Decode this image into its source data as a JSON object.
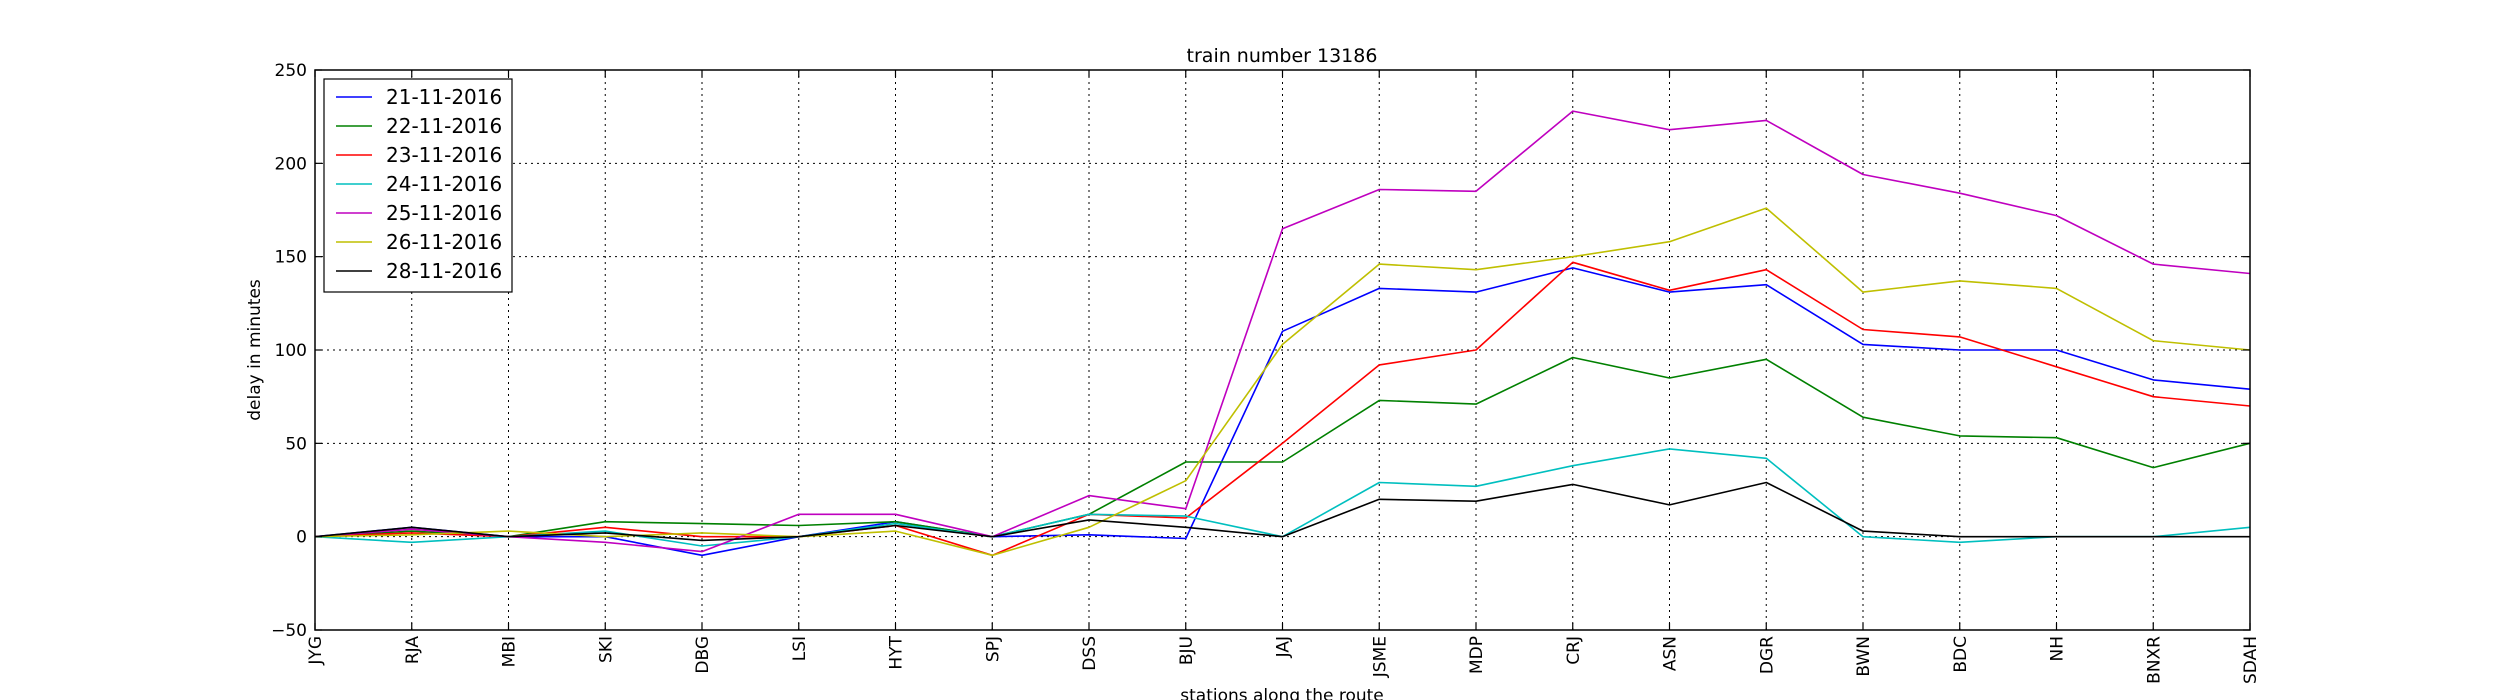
{
  "chart_data": {
    "type": "line",
    "title": "train number 13186",
    "xlabel": "stations along the route",
    "ylabel": "delay in minutes",
    "ylim": [
      -50,
      250
    ],
    "yticks": [
      "250",
      "200",
      "150",
      "100",
      "50",
      "0",
      "−50"
    ],
    "grid": true,
    "legend_position": "top-left",
    "categories": [
      "JYG",
      "RJA",
      "MBI",
      "SKI",
      "DBG",
      "LSI",
      "HYT",
      "SPJ",
      "DSS",
      "BJU",
      "JAJ",
      "JSME",
      "MDP",
      "CRJ",
      "ASN",
      "DGR",
      "BWN",
      "BDC",
      "NH",
      "BNXR",
      "SDAH"
    ],
    "series": [
      {
        "name": "21-11-2016",
        "color": "#0000ff",
        "values": [
          0,
          5,
          0,
          0,
          -10,
          0,
          8,
          0,
          1,
          -1,
          110,
          133,
          131,
          144,
          131,
          135,
          103,
          100,
          100,
          84,
          79
        ]
      },
      {
        "name": "22-11-2016",
        "color": "#008000",
        "values": [
          0,
          3,
          0,
          8,
          7,
          6,
          8,
          0,
          12,
          40,
          40,
          73,
          71,
          96,
          85,
          95,
          64,
          54,
          53,
          37,
          50
        ]
      },
      {
        "name": "23-11-2016",
        "color": "#ff0000",
        "values": [
          0,
          2,
          0,
          5,
          0,
          0,
          6,
          -10,
          12,
          10,
          50,
          92,
          100,
          147,
          132,
          143,
          111,
          107,
          91,
          75,
          70
        ]
      },
      {
        "name": "24-11-2016",
        "color": "#00bfbf",
        "values": [
          0,
          -3,
          0,
          3,
          -5,
          0,
          7,
          0,
          12,
          11,
          0,
          29,
          27,
          38,
          47,
          42,
          0,
          -3,
          0,
          0,
          5
        ]
      },
      {
        "name": "25-11-2016",
        "color": "#bf00bf",
        "values": [
          0,
          4,
          0,
          -3,
          -8,
          12,
          12,
          0,
          22,
          15,
          165,
          186,
          185,
          228,
          218,
          223,
          194,
          184,
          172,
          146,
          141
        ]
      },
      {
        "name": "26-11-2016",
        "color": "#bfbf00",
        "values": [
          0,
          1,
          3,
          0,
          2,
          0,
          3,
          -10,
          5,
          30,
          103,
          146,
          143,
          150,
          158,
          176,
          131,
          137,
          133,
          105,
          100
        ]
      },
      {
        "name": "28-11-2016",
        "color": "#000000",
        "values": [
          0,
          5,
          0,
          2,
          -2,
          0,
          6,
          0,
          9,
          5,
          0,
          20,
          19,
          28,
          17,
          29,
          3,
          0,
          0,
          0,
          0
        ]
      }
    ]
  }
}
